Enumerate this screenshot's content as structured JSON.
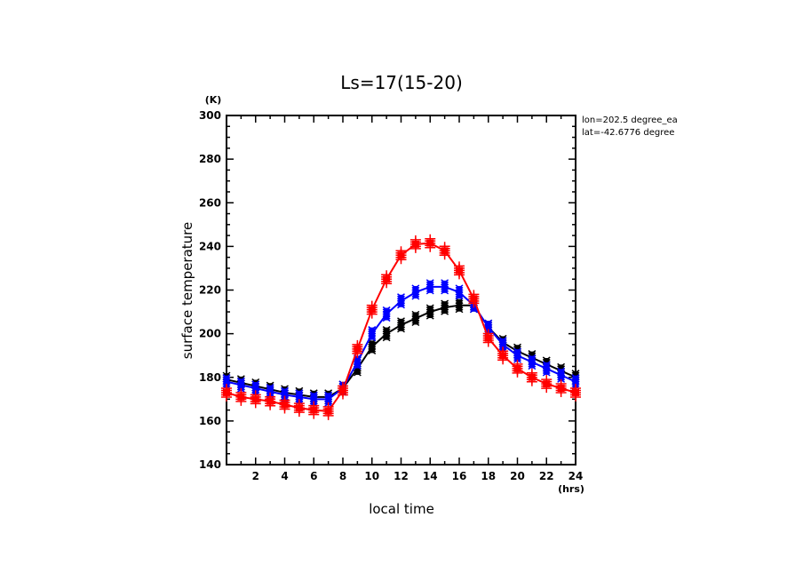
{
  "chart_data": {
    "type": "line",
    "title": "Ls=17(15-20)",
    "xlabel": "local time",
    "ylabel": "surface temperature",
    "x_unit": "(hrs)",
    "y_unit": "(K)",
    "xlim": [
      0,
      24
    ],
    "ylim": [
      140,
      300
    ],
    "x_ticks": [
      2,
      4,
      6,
      8,
      10,
      12,
      14,
      16,
      18,
      20,
      22,
      24
    ],
    "y_ticks": [
      140,
      160,
      180,
      200,
      220,
      240,
      260,
      280,
      300
    ],
    "grid": false,
    "annotations": [
      "lon=202.5 degree_ea",
      "lat=-42.6776 degree"
    ],
    "x": [
      0,
      1,
      2,
      3,
      4,
      5,
      6,
      7,
      8,
      9,
      10,
      11,
      12,
      13,
      14,
      15,
      16,
      17,
      18,
      19,
      20,
      21,
      22,
      23,
      24
    ],
    "series": [
      {
        "name": "black",
        "color": "#000000",
        "marker": "x",
        "values": [
          179,
          177.5,
          176,
          174.5,
          173,
          172,
          171,
          171,
          175,
          184,
          194,
          200,
          204,
          207,
          210,
          212,
          213,
          213,
          203,
          196,
          192,
          189,
          186,
          183,
          180
        ]
      },
      {
        "name": "blue",
        "color": "#0000ff",
        "marker": "x",
        "values": [
          178,
          176.5,
          175,
          173.5,
          172,
          171,
          170,
          170,
          175,
          187,
          200,
          209,
          215,
          219,
          221.5,
          221.5,
          219,
          213,
          203,
          195,
          190,
          187,
          184,
          181,
          178
        ]
      },
      {
        "name": "red",
        "color": "#ff0000",
        "marker": "+",
        "values": [
          173,
          171,
          170,
          169,
          167.5,
          166,
          165,
          164.5,
          174,
          193,
          211,
          225,
          236,
          241,
          241.5,
          238,
          229,
          216,
          198,
          190,
          184,
          180,
          177,
          175,
          173
        ]
      }
    ]
  }
}
